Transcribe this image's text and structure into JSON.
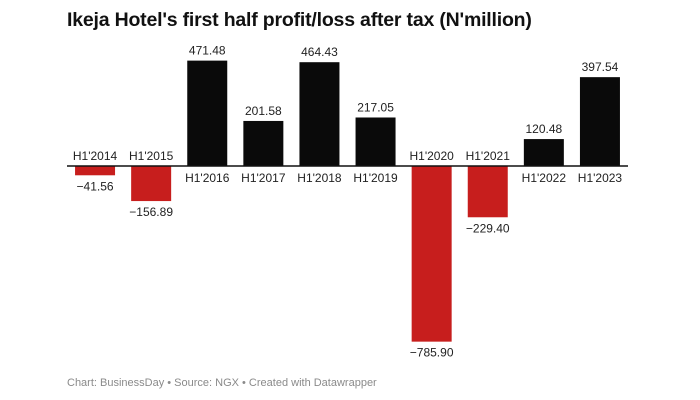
{
  "chart_data": {
    "type": "bar",
    "title": "Ikeja Hotel's first half profit/loss after tax (N'million)",
    "categories": [
      "H1'2014",
      "H1'2015",
      "H1'2016",
      "H1'2017",
      "H1'2018",
      "H1'2019",
      "H1'2020",
      "H1'2021",
      "H1'2022",
      "H1'2023"
    ],
    "values": [
      -41.56,
      -156.89,
      471.48,
      201.58,
      464.43,
      217.05,
      -785.9,
      -229.4,
      120.48,
      397.54
    ],
    "value_labels": [
      "−41.56",
      "−156.89",
      "471.48",
      "201.58",
      "464.43",
      "217.05",
      "−785.90",
      "−229.40",
      "120.48",
      "397.54"
    ],
    "xlabel": "",
    "ylabel": "",
    "ylim": [
      -785.9,
      471.48
    ],
    "grid": false,
    "colors": {
      "positive": "#0a0a0a",
      "negative": "#c71e1d",
      "baseline": "#111111"
    }
  },
  "footer": "Chart: BusinessDay • Source: NGX • Created with Datawrapper"
}
